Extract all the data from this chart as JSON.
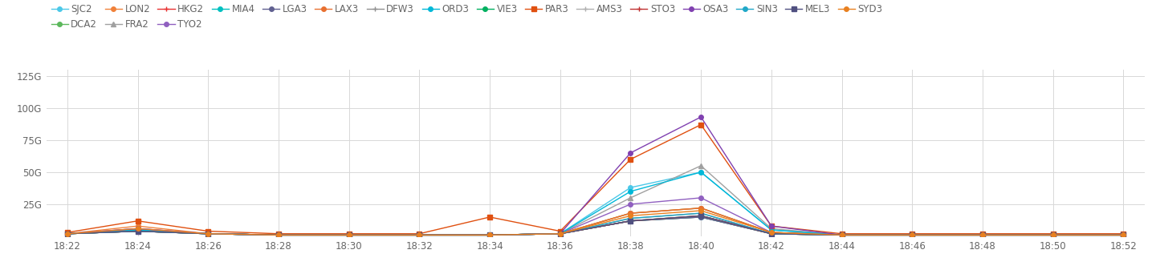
{
  "x_labels": [
    "18:22",
    "18:24",
    "18:26",
    "18:28",
    "18:30",
    "18:32",
    "18:34",
    "18:36",
    "18:38",
    "18:40",
    "18:42",
    "18:44",
    "18:46",
    "18:48",
    "18:50",
    "18:52"
  ],
  "ylim": [
    0,
    130
  ],
  "yticks": [
    0,
    25,
    50,
    75,
    100,
    125
  ],
  "ytick_labels": [
    "",
    "25G",
    "50G",
    "75G",
    "100G",
    "125G"
  ],
  "series": [
    {
      "label": "SJC2",
      "color": "#4bc8e8",
      "marker": "o",
      "mstyle": "full",
      "values": [
        2,
        5,
        2,
        1,
        1,
        1,
        1,
        2,
        38,
        50,
        5,
        1,
        1,
        1,
        1,
        1
      ]
    },
    {
      "label": "DCA2",
      "color": "#5cb85c",
      "marker": "o",
      "mstyle": "full",
      "values": [
        2,
        4,
        2,
        1,
        1,
        1,
        1,
        2,
        18,
        22,
        3,
        1,
        1,
        1,
        1,
        1
      ]
    },
    {
      "label": "LON2",
      "color": "#f0813a",
      "marker": "o",
      "mstyle": "full",
      "values": [
        2,
        8,
        2,
        1,
        1,
        1,
        1,
        2,
        18,
        22,
        3,
        1,
        1,
        1,
        1,
        1
      ]
    },
    {
      "label": "FRA2",
      "color": "#a0a0a0",
      "marker": "^",
      "mstyle": "full",
      "values": [
        2,
        5,
        2,
        1,
        1,
        1,
        1,
        2,
        30,
        55,
        6,
        1,
        1,
        1,
        1,
        1
      ]
    },
    {
      "label": "HKG2",
      "color": "#e83030",
      "marker": "+",
      "mstyle": "full",
      "values": [
        2,
        4,
        2,
        1,
        1,
        1,
        1,
        2,
        12,
        15,
        2,
        1,
        1,
        1,
        1,
        1
      ]
    },
    {
      "label": "TYO2",
      "color": "#9060c0",
      "marker": "o",
      "mstyle": "full",
      "values": [
        2,
        6,
        2,
        1,
        1,
        1,
        1,
        2,
        25,
        30,
        3,
        1,
        1,
        1,
        1,
        1
      ]
    },
    {
      "label": "MIA4",
      "color": "#00c0c0",
      "marker": "o",
      "mstyle": "full",
      "values": [
        2,
        4,
        2,
        1,
        1,
        1,
        1,
        2,
        12,
        15,
        2,
        1,
        1,
        1,
        1,
        1
      ]
    },
    {
      "label": "LGA3",
      "color": "#606090",
      "marker": "o",
      "mstyle": "full",
      "values": [
        2,
        4,
        2,
        1,
        1,
        1,
        1,
        2,
        12,
        15,
        2,
        1,
        1,
        1,
        1,
        1
      ]
    },
    {
      "label": "LAX3",
      "color": "#e87030",
      "marker": "o",
      "mstyle": "full",
      "values": [
        2,
        5,
        2,
        1,
        1,
        1,
        1,
        2,
        18,
        22,
        3,
        1,
        1,
        1,
        1,
        1
      ]
    },
    {
      "label": "DFW3",
      "color": "#909090",
      "marker": "+",
      "mstyle": "full",
      "values": [
        2,
        4,
        2,
        1,
        1,
        1,
        1,
        2,
        14,
        18,
        2,
        1,
        1,
        1,
        1,
        1
      ]
    },
    {
      "label": "ORD3",
      "color": "#00b8d8",
      "marker": "o",
      "mstyle": "full",
      "values": [
        2,
        5,
        2,
        1,
        1,
        1,
        1,
        2,
        35,
        50,
        5,
        1,
        1,
        1,
        1,
        1
      ]
    },
    {
      "label": "VIE3",
      "color": "#00b060",
      "marker": "o",
      "mstyle": "full",
      "values": [
        2,
        4,
        2,
        1,
        1,
        1,
        1,
        2,
        12,
        16,
        2,
        1,
        1,
        1,
        1,
        1
      ]
    },
    {
      "label": "PAR3",
      "color": "#e05010",
      "marker": "s",
      "mstyle": "full",
      "values": [
        3,
        12,
        4,
        2,
        2,
        2,
        15,
        4,
        60,
        87,
        8,
        2,
        2,
        2,
        2,
        2
      ]
    },
    {
      "label": "AMS3",
      "color": "#b0b0b0",
      "marker": "+",
      "mstyle": "full",
      "values": [
        2,
        4,
        2,
        1,
        1,
        1,
        1,
        2,
        12,
        16,
        2,
        1,
        1,
        1,
        1,
        1
      ]
    },
    {
      "label": "STO3",
      "color": "#c03030",
      "marker": "+",
      "mstyle": "full",
      "values": [
        2,
        4,
        2,
        1,
        1,
        1,
        1,
        2,
        12,
        16,
        2,
        1,
        1,
        1,
        1,
        1
      ]
    },
    {
      "label": "OSA3",
      "color": "#8040b0",
      "marker": "o",
      "mstyle": "full",
      "values": [
        2,
        6,
        2,
        1,
        1,
        1,
        1,
        2,
        65,
        93,
        8,
        1,
        1,
        1,
        1,
        1
      ]
    },
    {
      "label": "SIN3",
      "color": "#20a8c8",
      "marker": "o",
      "mstyle": "full",
      "values": [
        2,
        4,
        2,
        1,
        1,
        1,
        1,
        2,
        14,
        18,
        2,
        1,
        1,
        1,
        1,
        1
      ]
    },
    {
      "label": "MEL3",
      "color": "#505080",
      "marker": "s",
      "mstyle": "full",
      "values": [
        2,
        4,
        2,
        1,
        1,
        1,
        1,
        2,
        12,
        16,
        2,
        1,
        1,
        1,
        1,
        1
      ]
    },
    {
      "label": "SYD3",
      "color": "#e88020",
      "marker": "o",
      "mstyle": "full",
      "values": [
        2,
        6,
        2,
        1,
        1,
        1,
        1,
        2,
        16,
        20,
        3,
        1,
        1,
        1,
        1,
        1
      ]
    }
  ],
  "legend_row1": [
    "SJC2",
    "DCA2",
    "LON2",
    "FRA2",
    "HKG2",
    "TYO2",
    "MIA4",
    "LGA3",
    "LAX3",
    "DFW3",
    "ORD3",
    "VIE3",
    "PAR3",
    "AMS3",
    "STO3",
    "OSA3"
  ],
  "legend_row2": [
    "SIN3",
    "MEL3",
    "SYD3"
  ],
  "background_color": "#ffffff",
  "grid_color": "#d8d8d8",
  "tick_color": "#666666"
}
